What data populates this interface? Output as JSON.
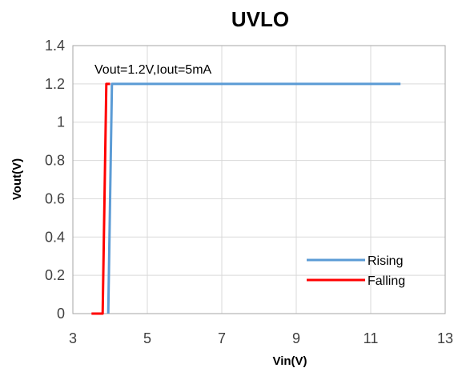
{
  "chart_data": {
    "type": "line",
    "title": "UVLO",
    "xlabel": "Vin(V)",
    "ylabel": "Vout(V)",
    "xlim": [
      3,
      13
    ],
    "ylim": [
      0,
      1.4
    ],
    "xticks": [
      3,
      5,
      7,
      9,
      11,
      13
    ],
    "yticks": [
      0,
      0.2,
      0.4,
      0.6,
      0.8,
      1,
      1.2,
      1.4
    ],
    "ytick_labels": [
      "0",
      "0.2",
      "0.4",
      "0.6",
      "0.8",
      "1",
      "1.2",
      "1.4"
    ],
    "grid": true,
    "legend_position": "bottom-right",
    "annotation": "Vout=1.2V,Iout=5mA",
    "series": [
      {
        "name": "Rising",
        "color": "#5b9bd5",
        "x": [
          3.95,
          4.05,
          11.8
        ],
        "y": [
          0,
          1.2,
          1.2
        ]
      },
      {
        "name": "Falling",
        "color": "#ff0000",
        "x": [
          3.5,
          3.8,
          3.9,
          4.0
        ],
        "y": [
          0,
          0,
          1.2,
          1.2
        ]
      }
    ]
  }
}
